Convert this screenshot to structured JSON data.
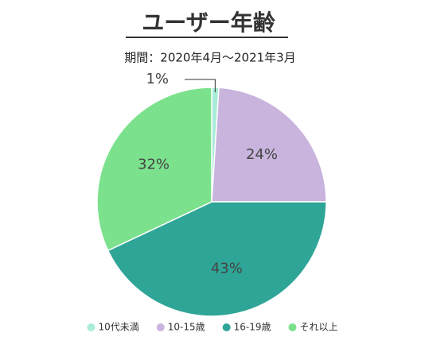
{
  "chart_data": {
    "type": "pie",
    "title": "ユーザー年齢",
    "subtitle": "期間：2020年4月～2021年3月",
    "categories": [
      "10代未満",
      "10-15歳",
      "16-19歳",
      "それ以上"
    ],
    "values": [
      1,
      24,
      43,
      32
    ],
    "value_labels": [
      "1%",
      "24%",
      "43%",
      "32%"
    ],
    "colors": [
      "#a9ecd9",
      "#c8b4dd",
      "#2ea597",
      "#7ce18d"
    ],
    "legend": "bottom"
  }
}
